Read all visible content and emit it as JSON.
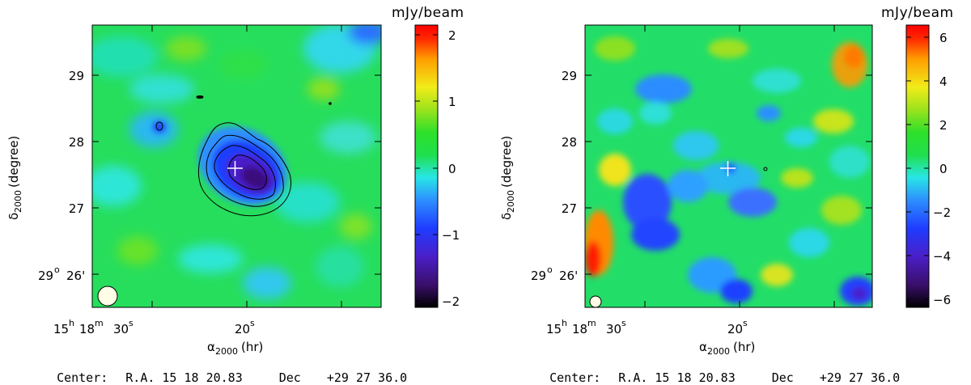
{
  "panels": [
    {
      "colorbar": {
        "unit": "mJy/beam",
        "ticks": [
          "2",
          "1",
          "0",
          "−1",
          "−2"
        ],
        "range": [
          -2.2,
          2.2
        ]
      },
      "ra_ticks": {
        "h": "15",
        "m": "18",
        "s30": "30",
        "s20": "20"
      },
      "dec_ticks": [
        "29",
        "28",
        "27"
      ],
      "dec_origin": {
        "deg": "29",
        "min": "26'"
      },
      "xlabel": "α",
      "xlabel_sub": "2000",
      "xlabel_unit": "(hr)",
      "ylabel": "δ",
      "ylabel_sub": "2000",
      "ylabel_unit": "(degree)",
      "footer": {
        "prefix": "Center:",
        "ra_label": "R.A.",
        "ra_value": "15 18 20.83",
        "dec_label": "Dec",
        "dec_value": "+29 27 36.0"
      }
    },
    {
      "colorbar": {
        "unit": "mJy/beam",
        "ticks": [
          "6",
          "4",
          "2",
          "0",
          "−2",
          "−4",
          "−6"
        ],
        "range": [
          -6.6,
          6.6
        ]
      },
      "ra_ticks": {
        "h": "15",
        "m": "18",
        "s30": "30",
        "s20": "20"
      },
      "dec_ticks": [
        "29",
        "28",
        "27"
      ],
      "dec_origin": {
        "deg": "29",
        "min": "26'"
      },
      "xlabel": "α",
      "xlabel_sub": "2000",
      "xlabel_unit": "(hr)",
      "ylabel": "δ",
      "ylabel_sub": "2000",
      "ylabel_unit": "(degree)",
      "footer": {
        "prefix": "Center:",
        "ra_label": "R.A.",
        "ra_value": "15 18 20.83",
        "dec_label": "Dec",
        "dec_value": "+29 27 36.0"
      }
    }
  ],
  "chart_data": [
    {
      "type": "heatmap",
      "unit": "mJy/beam",
      "colorbar_range": [
        -2.2,
        2.2
      ],
      "colorbar_ticks": [
        2,
        1,
        0,
        -1,
        -2
      ],
      "features": [
        {
          "kind": "decrement",
          "ra": "15h18m21.5s",
          "dec": "+29°27.5'",
          "peak": -1.9
        }
      ],
      "contours": true,
      "marker": "cross at cluster center",
      "beam": "circle lower-left"
    },
    {
      "type": "heatmap",
      "unit": "mJy/beam",
      "colorbar_range": [
        -6.6,
        6.6
      ],
      "colorbar_ticks": [
        6,
        4,
        2,
        0,
        -2,
        -4,
        -6
      ],
      "features": [],
      "contours": false,
      "marker": "cross at cluster center",
      "beam": "circle lower-left"
    }
  ],
  "colors": {
    "cmap": [
      "#000000",
      "#3a0f6a",
      "#4a1fc8",
      "#1f3cff",
      "#2e8fff",
      "#28e6e6",
      "#20df4e",
      "#2ee02a",
      "#9be21c",
      "#f1ec1a",
      "#ff9d00",
      "#ff2a00",
      "#ff0000"
    ]
  }
}
